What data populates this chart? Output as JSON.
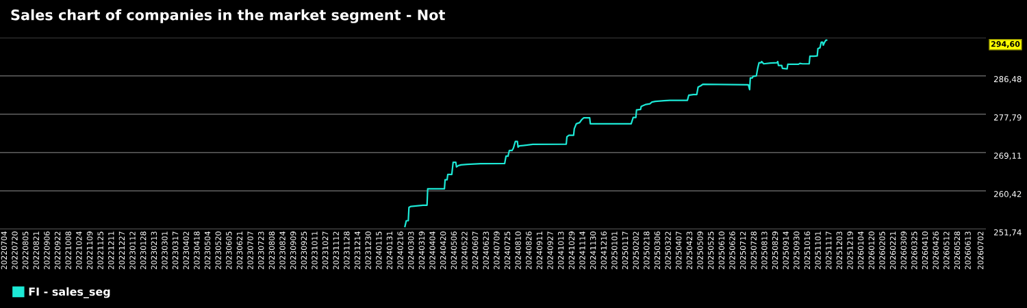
{
  "chart_data": {
    "type": "line",
    "title": "Sales chart of companies in the market segment - Not",
    "x": [
      "2024-02-22",
      "2024-02-24",
      "2024-02-27",
      "2024-02-28",
      "2024-03-02",
      "2024-03-20",
      "2024-03-26",
      "2024-03-27",
      "2024-04-21",
      "2024-04-22",
      "2024-04-25",
      "2024-04-26",
      "2024-05-02",
      "2024-05-04",
      "2024-05-08",
      "2024-05-09",
      "2024-05-12",
      "2024-05-16",
      "2024-05-25",
      "2024-06-14",
      "2024-07-20",
      "2024-07-22",
      "2024-07-25",
      "2024-07-27",
      "2024-07-31",
      "2024-08-02",
      "2024-08-05",
      "2024-08-08",
      "2024-08-09",
      "2024-08-11",
      "2024-08-23",
      "2024-08-31",
      "2024-10-20",
      "2024-10-21",
      "2024-10-24",
      "2024-10-31",
      "2024-11-01",
      "2024-11-04",
      "2024-11-09",
      "2024-11-12",
      "2024-11-15",
      "2024-11-24",
      "2024-11-25",
      "2025-01-25",
      "2025-01-28",
      "2025-02-01",
      "2025-02-02",
      "2025-02-08",
      "2025-02-09",
      "2025-02-16",
      "2025-02-22",
      "2025-02-25",
      "2025-03-02",
      "2025-03-15",
      "2025-03-24",
      "2025-04-19",
      "2025-04-21",
      "2025-04-28",
      "2025-05-03",
      "2025-05-05",
      "2025-05-09",
      "2025-05-12",
      "2025-07-19",
      "2025-07-21",
      "2025-07-22",
      "2025-07-25",
      "2025-07-26",
      "2025-07-31",
      "2025-08-02",
      "2025-08-04",
      "2025-08-07",
      "2025-08-08",
      "2025-08-11",
      "2025-08-21",
      "2025-08-31",
      "2025-09-01",
      "2025-09-02",
      "2025-09-07",
      "2025-09-08",
      "2025-09-15",
      "2025-09-16",
      "2025-10-02",
      "2025-10-04",
      "2025-10-08",
      "2025-10-18",
      "2025-10-19",
      "2025-10-25",
      "2025-10-30",
      "2025-10-31",
      "2025-11-03",
      "2025-11-05",
      "2025-11-07",
      "2025-11-08",
      "2025-11-10",
      "2025-11-12",
      "2025-11-13"
    ],
    "series": [
      {
        "name": "FI - sales_seg",
        "color": "#1de9d6",
        "values": [
          252.36,
          253.65,
          253.65,
          256.66,
          256.9,
          257.17,
          257.17,
          260.89,
          260.89,
          262.95,
          262.95,
          264.15,
          264.15,
          266.89,
          266.89,
          265.85,
          266.16,
          266.32,
          266.43,
          266.58,
          266.63,
          268.29,
          268.29,
          269.58,
          269.58,
          270.09,
          271.64,
          271.64,
          270.35,
          270.61,
          270.82,
          270.97,
          271.02,
          272.68,
          273.03,
          273.03,
          274.49,
          275.62,
          275.89,
          276.55,
          276.97,
          276.97,
          275.62,
          275.62,
          277.07,
          277.07,
          278.77,
          278.88,
          279.55,
          280.01,
          280.17,
          280.54,
          280.7,
          280.85,
          280.94,
          280.94,
          282.09,
          282.25,
          282.25,
          283.95,
          284.26,
          284.57,
          284.46,
          283.38,
          286.01,
          286.01,
          286.37,
          286.48,
          288.19,
          289.47,
          289.47,
          289.74,
          289.22,
          289.38,
          289.47,
          289.74,
          288.85,
          288.85,
          288.19,
          288.08,
          289.12,
          289.12,
          289.32,
          289.22,
          289.22,
          290.93,
          290.93,
          291.02,
          292.68,
          292.84,
          294.13,
          294.13,
          293.46,
          294.13,
          294.6,
          294.6
        ]
      }
    ],
    "xlim": [
      "2022-06-27",
      "2026-07-09"
    ],
    "xticks": [
      {
        "value": "2022-07-04",
        "label": "20220704"
      },
      {
        "value": "2022-07-20",
        "label": "20220720"
      },
      {
        "value": "2022-08-05",
        "label": "20220805"
      },
      {
        "value": "2022-08-21",
        "label": "20220821"
      },
      {
        "value": "2022-09-06",
        "label": "20220906"
      },
      {
        "value": "2022-09-22",
        "label": "20220922"
      },
      {
        "value": "2022-10-08",
        "label": "20221008"
      },
      {
        "value": "2022-10-24",
        "label": "20221024"
      },
      {
        "value": "2022-11-09",
        "label": "20221109"
      },
      {
        "value": "2022-11-25",
        "label": "20221125"
      },
      {
        "value": "2022-12-11",
        "label": "20221211"
      },
      {
        "value": "2022-12-27",
        "label": "20221227"
      },
      {
        "value": "2023-01-12",
        "label": "20230112"
      },
      {
        "value": "2023-01-28",
        "label": "20230128"
      },
      {
        "value": "2023-02-13",
        "label": "20230213"
      },
      {
        "value": "2023-03-01",
        "label": "20230301"
      },
      {
        "value": "2023-03-17",
        "label": "20230317"
      },
      {
        "value": "2023-04-02",
        "label": "20230402"
      },
      {
        "value": "2023-04-18",
        "label": "20230418"
      },
      {
        "value": "2023-05-04",
        "label": "20230504"
      },
      {
        "value": "2023-05-20",
        "label": "20230520"
      },
      {
        "value": "2023-06-05",
        "label": "20230605"
      },
      {
        "value": "2023-06-21",
        "label": "20230621"
      },
      {
        "value": "2023-07-07",
        "label": "20230707"
      },
      {
        "value": "2023-07-23",
        "label": "20230723"
      },
      {
        "value": "2023-08-08",
        "label": "20230808"
      },
      {
        "value": "2023-08-24",
        "label": "20230824"
      },
      {
        "value": "2023-09-09",
        "label": "20230909"
      },
      {
        "value": "2023-09-25",
        "label": "20230925"
      },
      {
        "value": "2023-10-11",
        "label": "20231011"
      },
      {
        "value": "2023-10-27",
        "label": "20231027"
      },
      {
        "value": "2023-11-12",
        "label": "20231112"
      },
      {
        "value": "2023-11-28",
        "label": "20231128"
      },
      {
        "value": "2023-12-14",
        "label": "20231214"
      },
      {
        "value": "2023-12-30",
        "label": "20231230"
      },
      {
        "value": "2024-01-15",
        "label": "20240115"
      },
      {
        "value": "2024-01-31",
        "label": "20240131"
      },
      {
        "value": "2024-02-16",
        "label": "20240216"
      },
      {
        "value": "2024-03-03",
        "label": "20240303"
      },
      {
        "value": "2024-03-19",
        "label": "20240319"
      },
      {
        "value": "2024-04-04",
        "label": "20240404"
      },
      {
        "value": "2024-04-20",
        "label": "20240420"
      },
      {
        "value": "2024-05-06",
        "label": "20240506"
      },
      {
        "value": "2024-05-22",
        "label": "20240522"
      },
      {
        "value": "2024-06-07",
        "label": "20240607"
      },
      {
        "value": "2024-06-23",
        "label": "20240623"
      },
      {
        "value": "2024-07-09",
        "label": "20240709"
      },
      {
        "value": "2024-07-25",
        "label": "20240725"
      },
      {
        "value": "2024-08-10",
        "label": "20240810"
      },
      {
        "value": "2024-08-26",
        "label": "20240826"
      },
      {
        "value": "2024-09-11",
        "label": "20240911"
      },
      {
        "value": "2024-09-27",
        "label": "20240927"
      },
      {
        "value": "2024-10-13",
        "label": "20241013"
      },
      {
        "value": "2024-10-29",
        "label": "20241029"
      },
      {
        "value": "2024-11-14",
        "label": "20241114"
      },
      {
        "value": "2024-11-30",
        "label": "20241130"
      },
      {
        "value": "2024-12-16",
        "label": "20241216"
      },
      {
        "value": "2025-01-01",
        "label": "20250101"
      },
      {
        "value": "2025-01-17",
        "label": "20250117"
      },
      {
        "value": "2025-02-02",
        "label": "20250202"
      },
      {
        "value": "2025-02-18",
        "label": "20250218"
      },
      {
        "value": "2025-03-06",
        "label": "20250306"
      },
      {
        "value": "2025-03-22",
        "label": "20250322"
      },
      {
        "value": "2025-04-07",
        "label": "20250407"
      },
      {
        "value": "2025-04-23",
        "label": "20250423"
      },
      {
        "value": "2025-05-09",
        "label": "20250509"
      },
      {
        "value": "2025-05-25",
        "label": "20250525"
      },
      {
        "value": "2025-06-10",
        "label": "20250610"
      },
      {
        "value": "2025-06-26",
        "label": "20250626"
      },
      {
        "value": "2025-07-12",
        "label": "20250712"
      },
      {
        "value": "2025-07-28",
        "label": "20250728"
      },
      {
        "value": "2025-08-13",
        "label": "20250813"
      },
      {
        "value": "2025-08-29",
        "label": "20250829"
      },
      {
        "value": "2025-09-14",
        "label": "20250914"
      },
      {
        "value": "2025-09-30",
        "label": "20250930"
      },
      {
        "value": "2025-10-16",
        "label": "20251016"
      },
      {
        "value": "2025-11-01",
        "label": "20251101"
      },
      {
        "value": "2025-11-17",
        "label": "20251117"
      },
      {
        "value": "2025-12-03",
        "label": "20251203"
      },
      {
        "value": "2025-12-19",
        "label": "20251219"
      },
      {
        "value": "2026-01-04",
        "label": "20260104"
      },
      {
        "value": "2026-01-20",
        "label": "20260120"
      },
      {
        "value": "2026-02-05",
        "label": "20260205"
      },
      {
        "value": "2026-02-21",
        "label": "20260221"
      },
      {
        "value": "2026-03-09",
        "label": "20260309"
      },
      {
        "value": "2026-03-25",
        "label": "20260325"
      },
      {
        "value": "2026-04-10",
        "label": "20260410"
      },
      {
        "value": "2026-04-26",
        "label": "20260426"
      },
      {
        "value": "2026-05-12",
        "label": "20260512"
      },
      {
        "value": "2026-05-28",
        "label": "20260528"
      },
      {
        "value": "2026-06-13",
        "label": "20260613"
      },
      {
        "value": "2026-07-02",
        "label": "20260702"
      }
    ],
    "ylim": [
      251.74,
      295.17
    ],
    "yticks": [
      {
        "value": 251.74,
        "label": "251,74"
      },
      {
        "value": 260.42,
        "label": "260,42"
      },
      {
        "value": 269.11,
        "label": "269,11"
      },
      {
        "value": 277.79,
        "label": "277,79"
      },
      {
        "value": 286.48,
        "label": "286,48"
      },
      {
        "value": 295.17,
        "label": null
      }
    ],
    "annotations": [
      "294,60"
    ],
    "grid": "y",
    "legend": "bottom left",
    "marker": "none",
    "line_style": "solid"
  }
}
